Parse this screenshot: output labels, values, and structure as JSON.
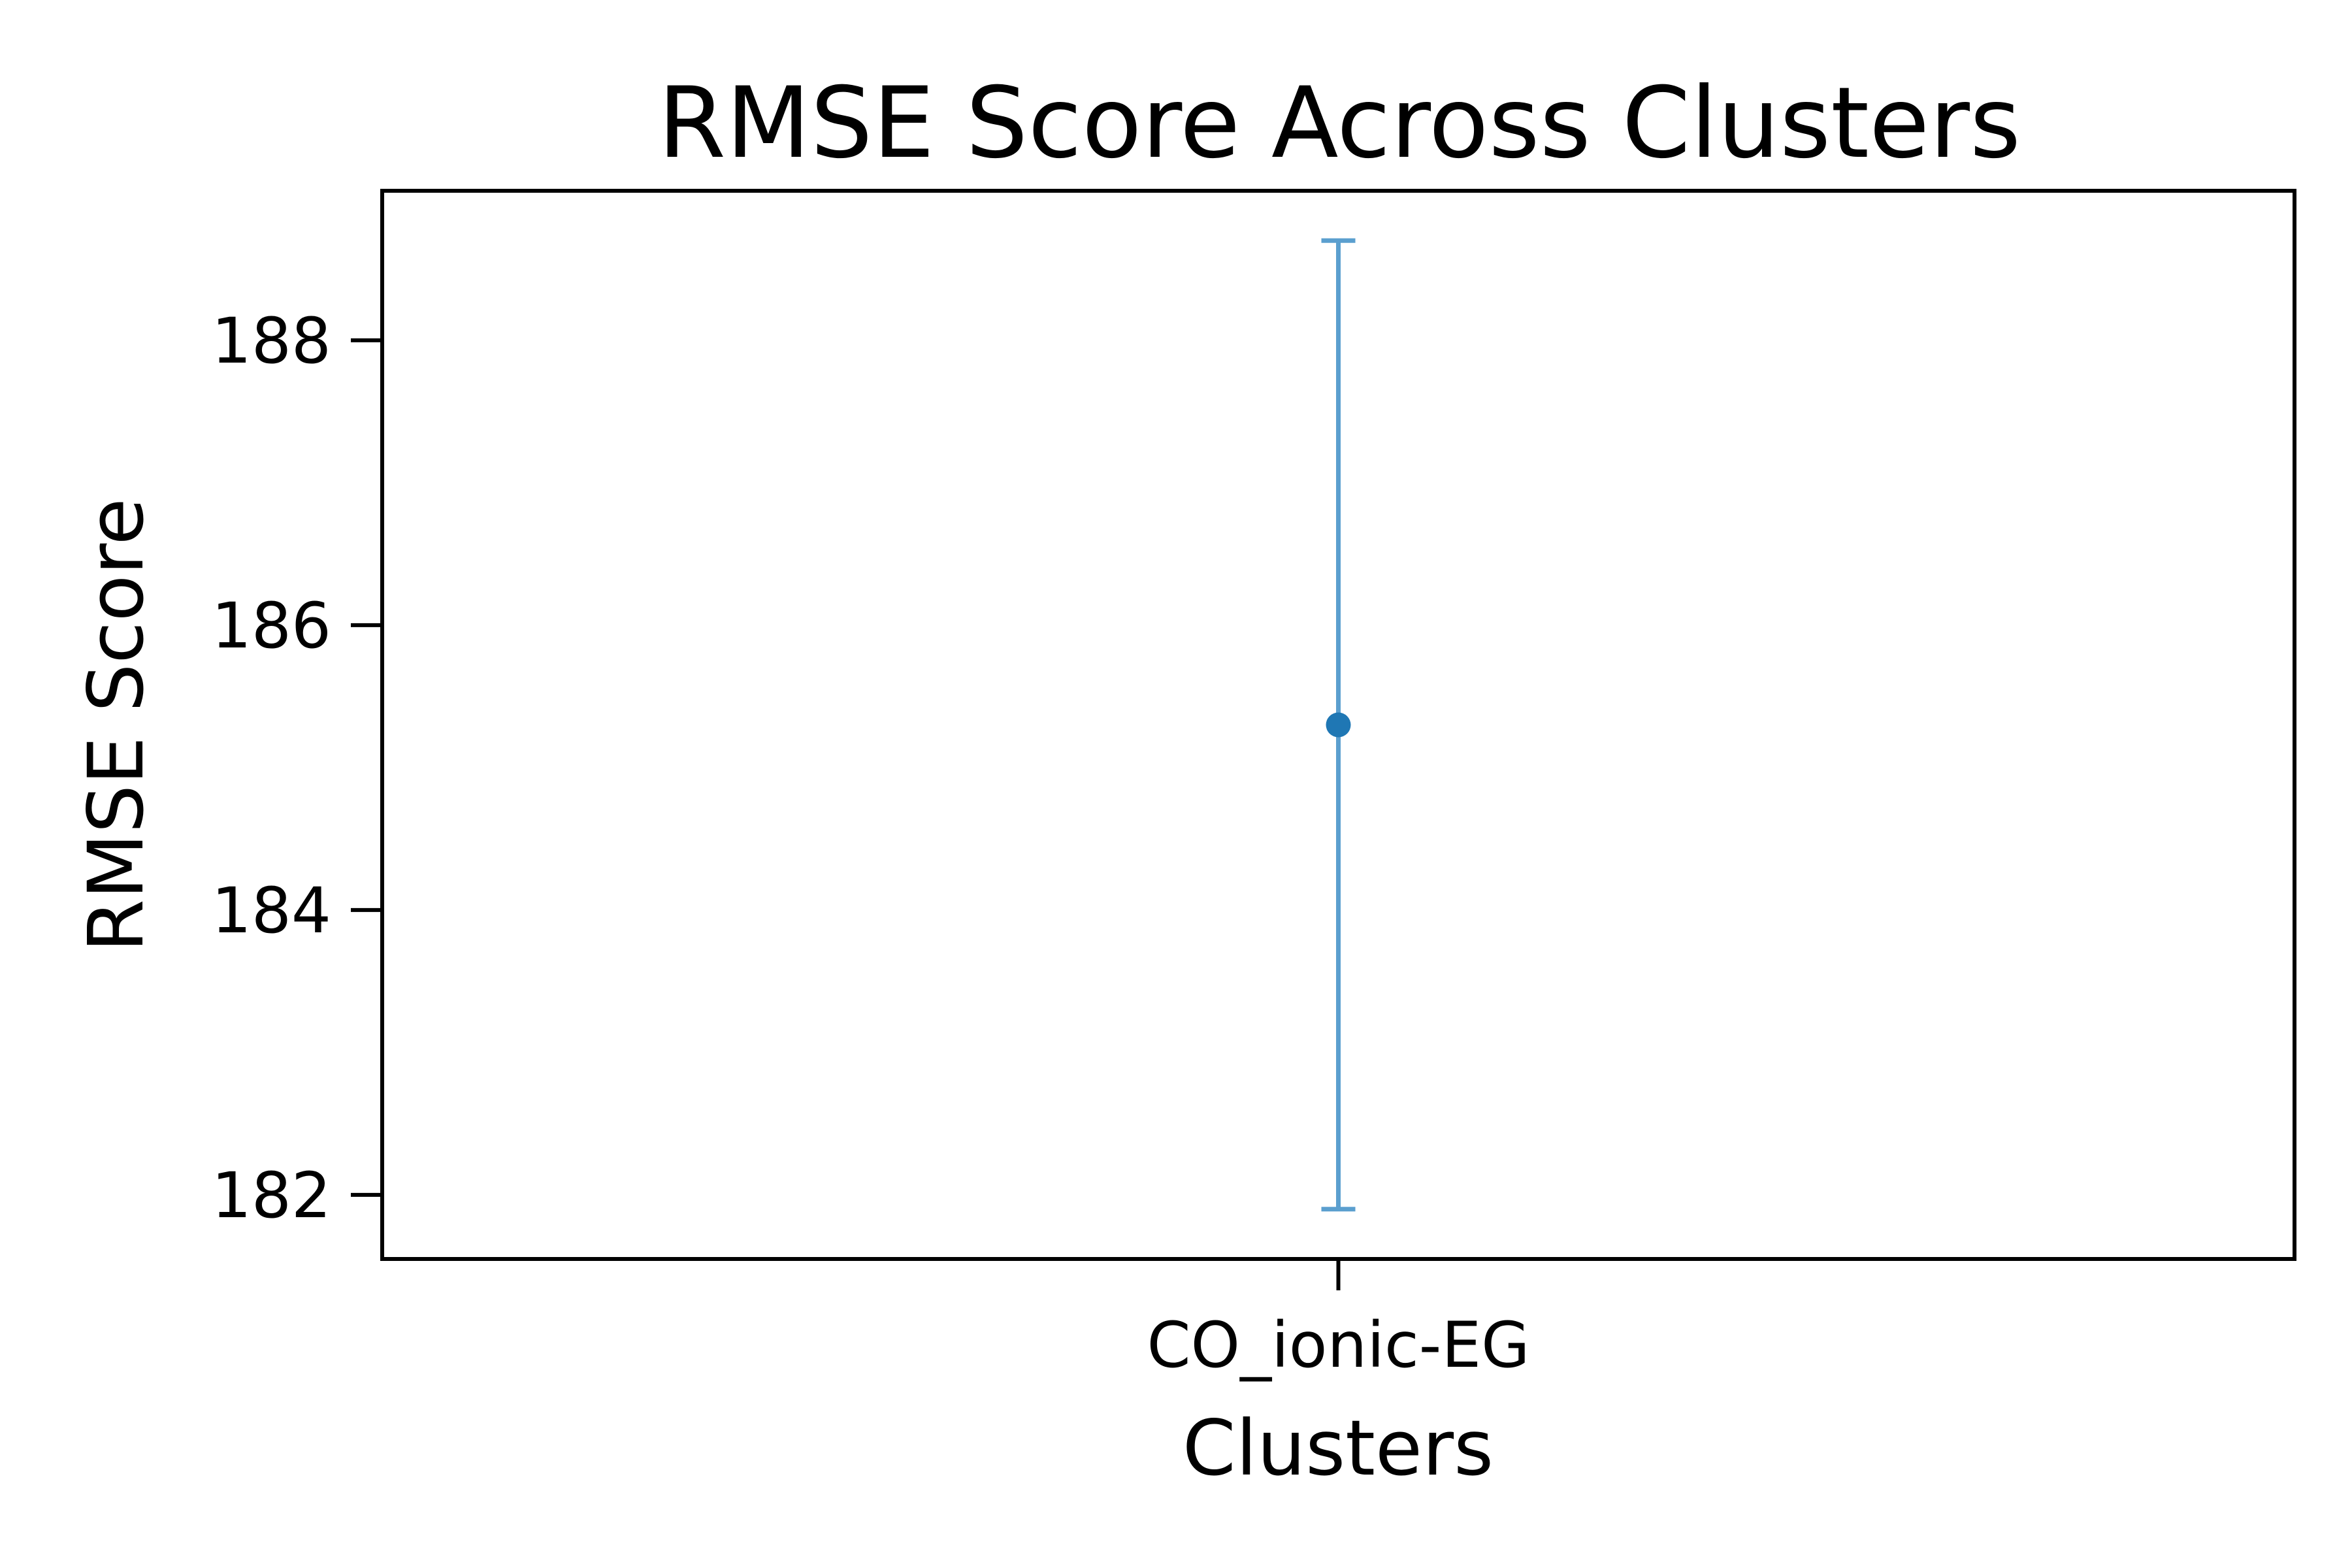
{
  "chart_data": {
    "type": "scatter",
    "title": "RMSE Score Across Clusters",
    "xlabel": "Clusters",
    "ylabel": "RMSE Score",
    "categories": [
      "CO_ionic-EG"
    ],
    "series": [
      {
        "values": [
          185.3
        ],
        "error_low": [
          181.9
        ],
        "error_high": [
          188.7
        ]
      }
    ],
    "yticks": [
      182,
      184,
      186,
      188
    ],
    "ylim": [
      181.55,
      189.05
    ],
    "grid": false,
    "colors": {
      "marker": "#1f77b4",
      "errorbar": "#5b9fcf"
    }
  }
}
